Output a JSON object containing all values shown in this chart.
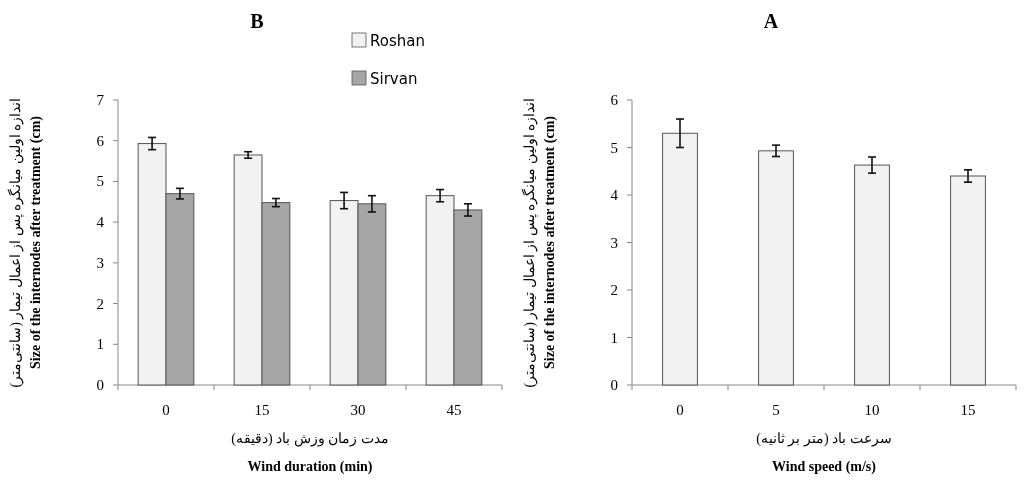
{
  "chart_data": [
    {
      "type": "bar",
      "title": "B",
      "categories": [
        "0",
        "15",
        "30",
        "45"
      ],
      "xlabel": "مدت زمان وزش باد (دقیقه)\nWind duration (min)",
      "ylabel": "اندازه اولین میانگره پس از اعمال تیمار (سانتی‌متر)\nSize of the internodes after treatment (cm)",
      "ylim": [
        0,
        7
      ],
      "yticks": [
        0,
        1,
        2,
        3,
        4,
        5,
        6,
        7
      ],
      "legend": "top right",
      "grid": false,
      "series": [
        {
          "name": "Roshan",
          "color": "#f2f2f2",
          "values": [
            5.93,
            5.65,
            4.53,
            4.65
          ],
          "errors": [
            0.15,
            0.08,
            0.2,
            0.15
          ]
        },
        {
          "name": "Sirvan",
          "color": "#a6a6a6",
          "values": [
            4.7,
            4.48,
            4.45,
            4.3
          ],
          "errors": [
            0.13,
            0.1,
            0.2,
            0.15
          ]
        }
      ]
    },
    {
      "type": "bar",
      "title": "A",
      "categories": [
        "0",
        "5",
        "10",
        "15"
      ],
      "xlabel": "سرعت باد (متر بر ثانیه)\nWind speed (m/s)",
      "ylabel": "اندازه اولین میانگره پس از اعمال تیمار (سانتی‌متر)\nSize of the internodes after treatment (cm)",
      "ylim": [
        0,
        6
      ],
      "yticks": [
        0,
        1,
        2,
        3,
        4,
        5,
        6
      ],
      "grid": false,
      "series": [
        {
          "color": "#f2f2f2",
          "values": [
            5.3,
            4.93,
            4.63,
            4.4
          ],
          "errors": [
            0.3,
            0.12,
            0.17,
            0.13
          ]
        }
      ]
    }
  ]
}
